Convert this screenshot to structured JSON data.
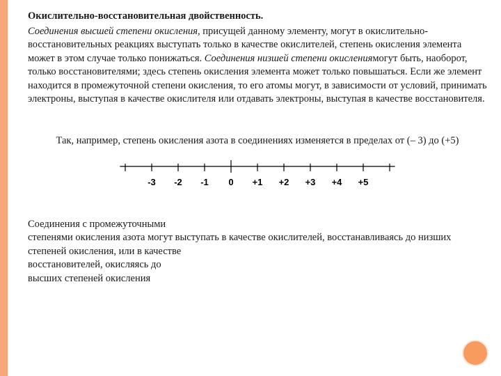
{
  "accent_color": "#f8a77a",
  "circle_color": "#f79b5f",
  "title": "Окислительно-восстановительная двойственность.",
  "p1_it1": "Соединения высшей степени окисления",
  "p1_txt1": ", присущей данному элементу, могут в окислительно-восстановительных реакциях выступать только в качестве окислителей, степень окисления элемента может в этом случае только понижаться. ",
  "p1_it2": "Соединения низшей степени окисления",
  "p1_txt2": "могут быть, наоборот, только восстановителями; здесь степень окисления элемента может только повышаться. Если же элемент находится в промежуточной степени окисления, то его атомы могут, в зависимости от условий, принимать электроны, выступая в качестве окислителя или отдавать электроны, выступая в качестве восстановителя.",
  "center_text": "Так, например, степень окисления азота в соединениях изменяется в пределах от (– 3) до (+5)",
  "numberline": {
    "labels": [
      "",
      "-3",
      "-2",
      "-1",
      "0",
      "+1",
      "+2",
      "+3",
      "+4",
      "+5",
      ""
    ],
    "tick_count": 11,
    "tick_spacing": 38,
    "line_color": "#000000",
    "center_tick_index": 4
  },
  "p3_l1": "Соединения с промежуточными",
  "p3_l2": "степенями окисления азота могут выступать в качестве окислителей, восстанавливаясь до низших",
  "p3_l3": "степеней окисления, или в качестве",
  "p3_l4": "восстановителей, окисляясь до",
  "p3_l5": "высших степеней окисления"
}
